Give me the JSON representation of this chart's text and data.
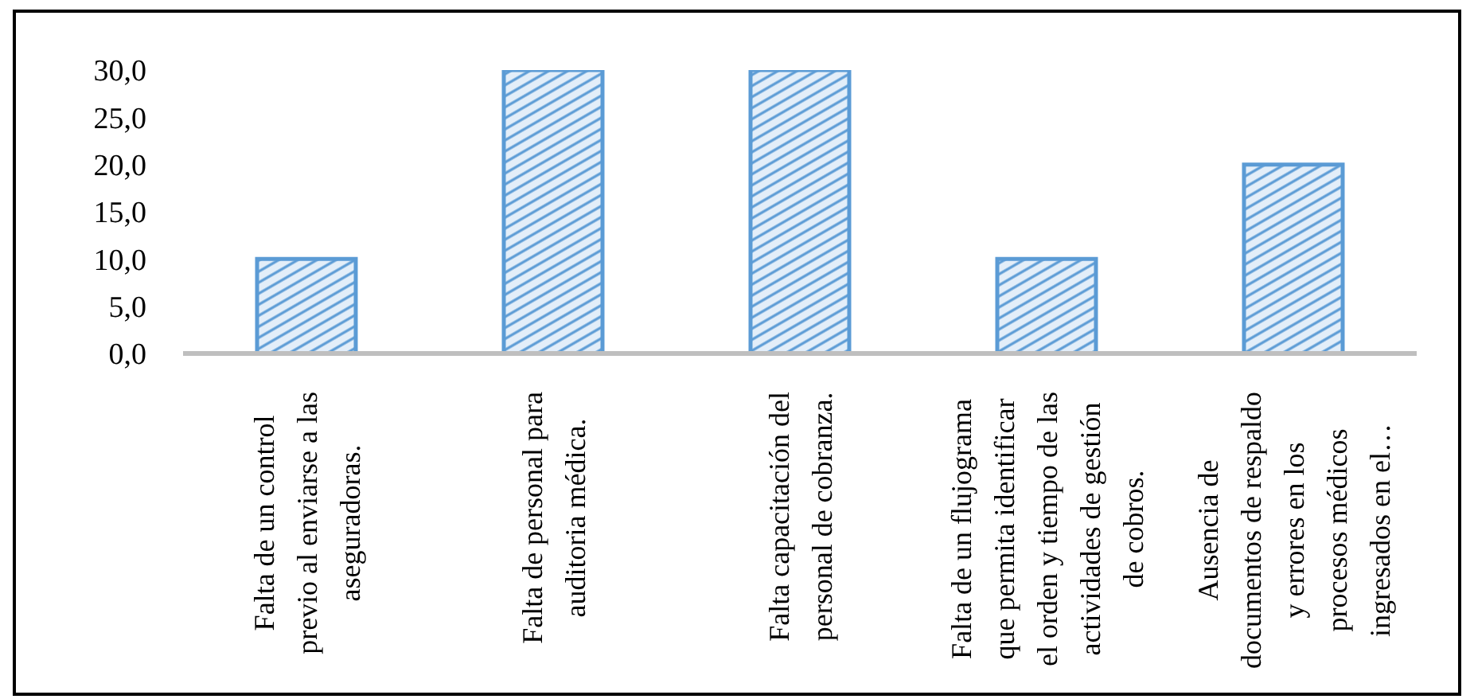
{
  "chart_data": {
    "type": "bar",
    "categories": [
      "Falta de un control\nprevio al enviarse a las\naseguradoras.",
      "Falta de personal para\nauditoria médica.",
      "Falta capacitación del\npersonal de cobranza.",
      "Falta de un flujograma\nque permita identificar\nel orden y tiempo de las\nactividades de gestión\nde cobros.",
      "Ausencia de\ndocumentos de respaldo\ny errores en los\nprocesos médicos\ningresados en el…"
    ],
    "values": [
      10,
      30,
      30,
      10,
      20
    ],
    "color": "#5b9bd5",
    "ylim": [
      0,
      30
    ],
    "yticks": [
      {
        "value": 0,
        "label": "0,0"
      },
      {
        "value": 5,
        "label": "5,0"
      },
      {
        "value": 10,
        "label": "10,0"
      },
      {
        "value": 15,
        "label": "15,0"
      },
      {
        "value": 20,
        "label": "20,0"
      },
      {
        "value": 25,
        "label": "25,0"
      },
      {
        "value": 30,
        "label": "30,0"
      }
    ]
  }
}
